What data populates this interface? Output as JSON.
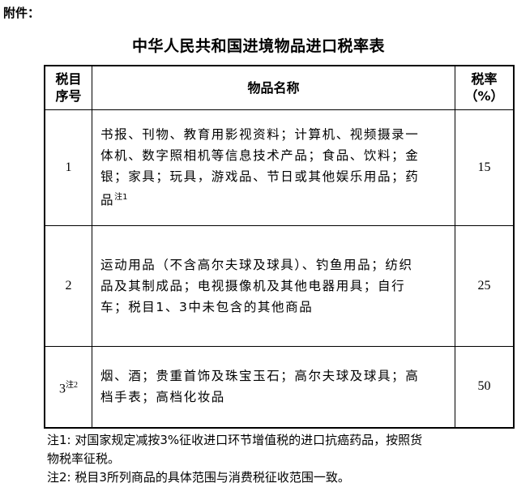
{
  "attachment_label": "附件：",
  "title": "中华人民共和国进境物品进口税率表",
  "table": {
    "headers": {
      "col1": [
        "税目",
        "序号"
      ],
      "col2": "物品名称",
      "col3": [
        "税率",
        "（%）"
      ]
    },
    "rows": [
      {
        "no": "1",
        "no_note": "",
        "lines": [
          "书报、刊物、教育用影视资料；计算机、视频摄录一",
          "体机、数字照相机等信息技术产品；食品、饮料；金",
          "银；家具；玩具，游戏品、节日或其他娱乐用品；药",
          "品"
        ],
        "desc_note": "注1",
        "rate": "15"
      },
      {
        "no": "2",
        "no_note": "",
        "lines": [
          "运动用品（不含高尔夫球及球具）、钓鱼用品；纺织",
          "品及其制成品；电视摄像机及其他电器用具；自行",
          "车；税目1、3中未包含的其他商品"
        ],
        "desc_note": "",
        "rate": "25"
      },
      {
        "no": "3",
        "no_note": "注2",
        "lines": [
          "烟、酒；贵重首饰及珠宝玉石；高尔夫球及球具；高",
          "档手表；高档化妆品"
        ],
        "desc_note": "",
        "rate": "50"
      }
    ]
  },
  "notes": [
    "注1: 对国家规定减按3%征收进口环节增值税的进口抗癌药品，按照货",
    "物税率征税。",
    "注2: 税目3所列商品的具体范围与消费税征收范围一致。"
  ]
}
